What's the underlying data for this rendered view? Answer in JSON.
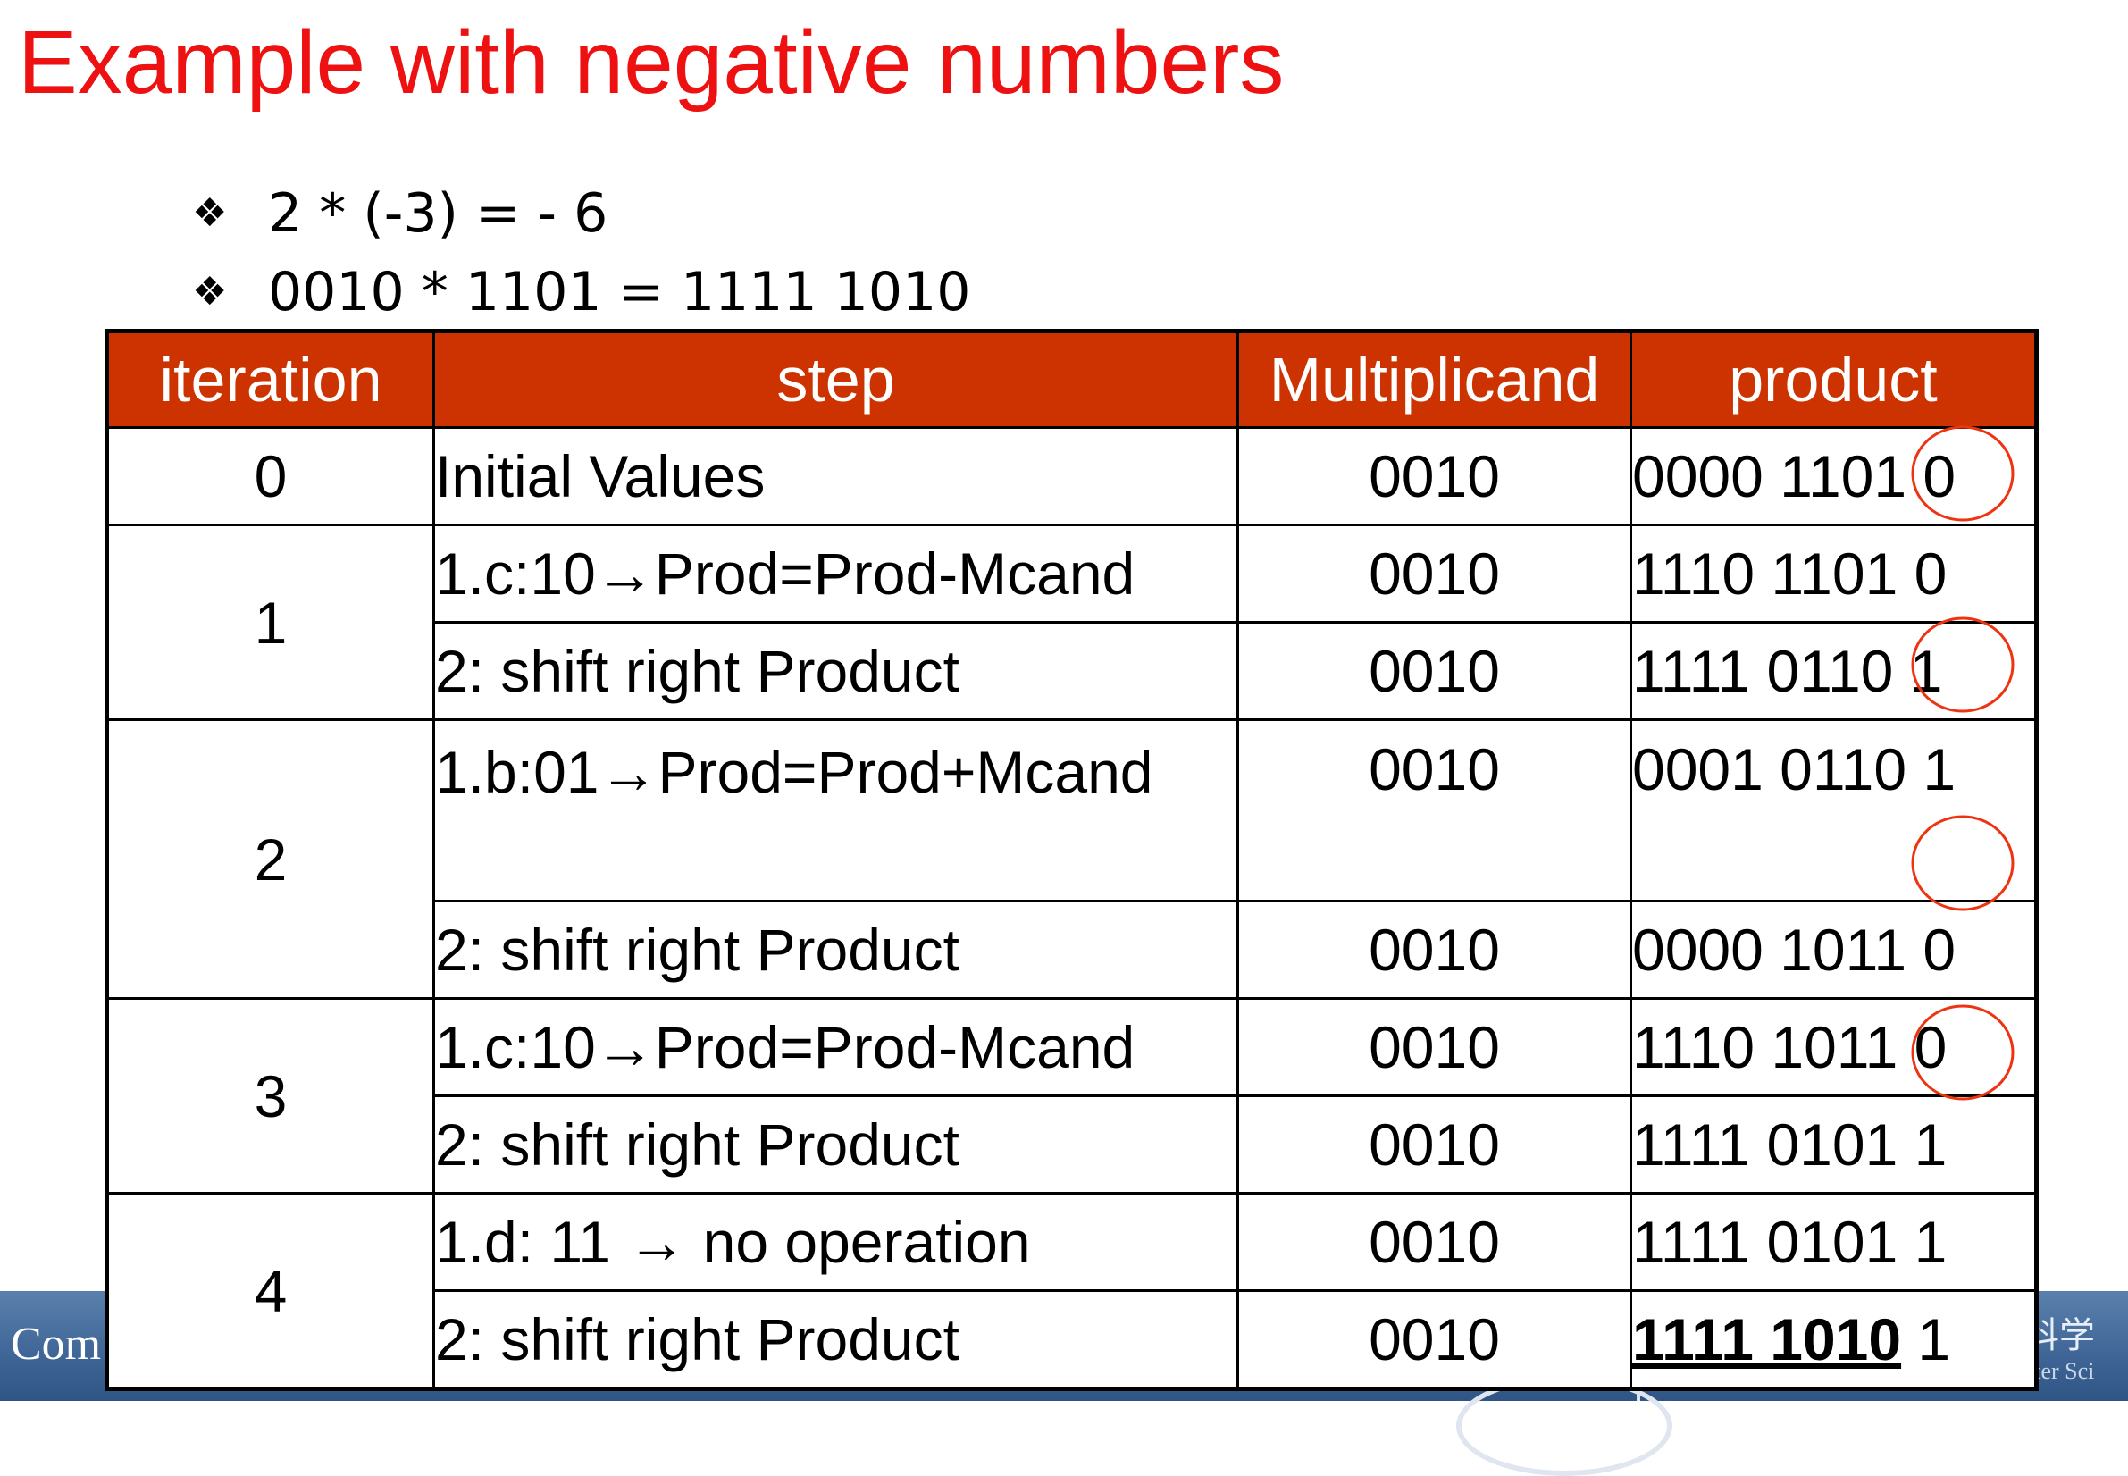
{
  "title": "Example with negative numbers",
  "bullets": [
    {
      "glyph": "❖",
      "text": "2 * (-3) = - 6"
    },
    {
      "glyph": "❖",
      "text": "0010 * 1101 = 1111 1010"
    }
  ],
  "table": {
    "headers": [
      "iteration",
      "step",
      "Multiplicand",
      "product"
    ],
    "groups": [
      {
        "iteration": "0",
        "rows": [
          {
            "step": "Initial Values",
            "mcand": "0010",
            "product": "0000 1101 0"
          }
        ]
      },
      {
        "iteration": "1",
        "rows": [
          {
            "step": "1.c:10→Prod=Prod-Mcand",
            "mcand": "0010",
            "product": "1110 1101 0"
          },
          {
            "step": "2: shift right Product",
            "mcand": "0010",
            "product": "1111 0110 1"
          }
        ]
      },
      {
        "iteration": "2",
        "rows": [
          {
            "step": "1.b:01→Prod=Prod+Mcand",
            "mcand": "0010",
            "product": "0001 0110 1"
          },
          {
            "step": "2: shift right Product",
            "mcand": "0010",
            "product": "0000 1011 0"
          }
        ]
      },
      {
        "iteration": "3",
        "rows": [
          {
            "step": "1.c:10→Prod=Prod-Mcand",
            "mcand": "0010",
            "product": "1110 1011 0"
          },
          {
            "step": "2: shift right Product",
            "mcand": "0010",
            "product": "1111 0101 1"
          }
        ]
      },
      {
        "iteration": "4",
        "rows": [
          {
            "step": "1.d: 11 → no operation",
            "mcand": "0010",
            "product": "1111 0101 1"
          },
          {
            "step": "2: shift right Product",
            "mcand": "0010",
            "product_bold": "1111 1010",
            "product_rest": " 1"
          }
        ]
      }
    ]
  },
  "footer": {
    "left_text": "Com",
    "right_text": "科学",
    "right_sub": "iter Sci"
  },
  "colors": {
    "title": "#ee1111",
    "header_bg": "#cc3300",
    "annotation": "#ee3311",
    "footer_bg": "#3e6596"
  }
}
